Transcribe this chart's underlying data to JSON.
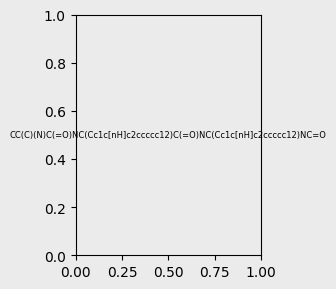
{
  "smiles": "CC(C)(N)C(=O)NC(Cc1c[nH]c2ccccc12)C(=O)NC(Cc1c[nH]c2ccccc12)NC=O",
  "image_size": 300,
  "background_color": "#ebebeb",
  "title": ""
}
